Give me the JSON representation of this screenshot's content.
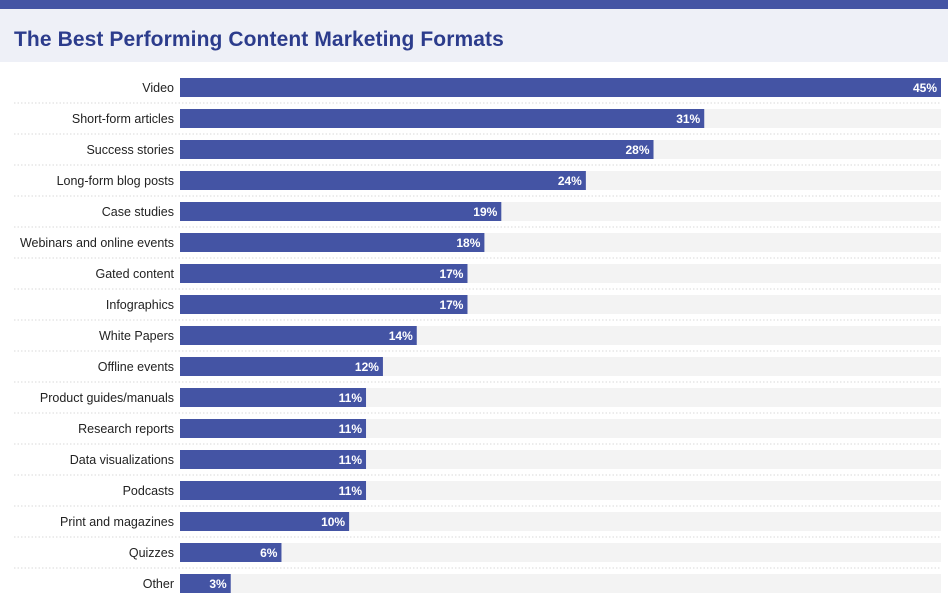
{
  "header": {
    "title": "The Best Performing Content Marketing Formats"
  },
  "colors": {
    "accent": "#4454a4",
    "bar": "#4454a4",
    "track": "#f3f3f3",
    "title": "#2c3c8c",
    "header_bg": "#eef0f7",
    "value_text": "#ffffff",
    "label_text": "#222222"
  },
  "chart_data": {
    "type": "bar",
    "orientation": "horizontal",
    "title": "The Best Performing Content Marketing Formats",
    "xlim": [
      0,
      45
    ],
    "grid": false,
    "legend": "none",
    "categories": [
      "Video",
      "Short-form articles",
      "Success stories",
      "Long-form blog posts",
      "Case studies",
      "Webinars and online events",
      "Gated content",
      "Infographics",
      "White Papers",
      "Offline events",
      "Product guides/manuals",
      "Research reports",
      "Data visualizations",
      "Podcasts",
      "Print and magazines",
      "Quizzes",
      "Other"
    ],
    "values": [
      45,
      31,
      28,
      24,
      19,
      18,
      17,
      17,
      14,
      12,
      11,
      11,
      11,
      11,
      10,
      6,
      3
    ],
    "value_labels": [
      "45%",
      "31%",
      "28%",
      "24%",
      "19%",
      "18%",
      "17%",
      "17%",
      "14%",
      "12%",
      "11%",
      "11%",
      "11%",
      "11%",
      "10%",
      "6%",
      "3%"
    ]
  }
}
